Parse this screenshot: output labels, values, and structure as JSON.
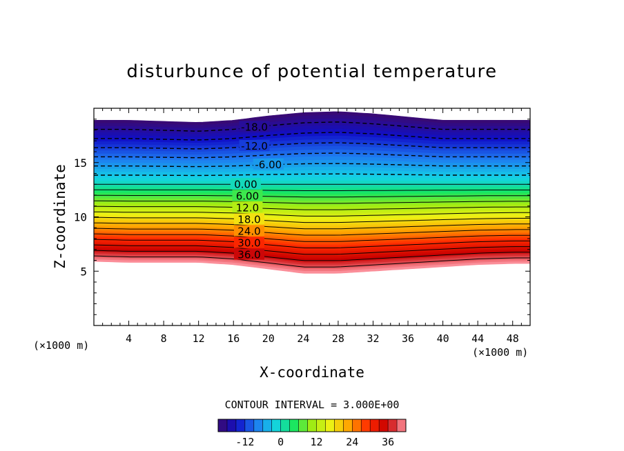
{
  "chart_data": {
    "type": "heatmap",
    "subtype": "filled-contour",
    "title": "disturbunce of potential temperature",
    "xlabel": "X-coordinate",
    "ylabel": "Z-coordinate",
    "x_unit_left": "(×1000 m)",
    "x_unit_right": "(×1000 m)",
    "xlim": [
      0,
      50
    ],
    "ylim": [
      0,
      20
    ],
    "x_ticks": [
      4,
      8,
      12,
      16,
      20,
      24,
      28,
      32,
      36,
      40,
      44,
      48
    ],
    "y_ticks": [
      5,
      10,
      15
    ],
    "contour_interval_text": "CONTOUR INTERVAL = 3.000E+00",
    "contour_interval": 3,
    "value_range": [
      -21,
      42
    ],
    "negative_contours": "dashed",
    "contour_labels": [
      "-18.0",
      "-12.0",
      "-6.00",
      "0.00",
      "6.00",
      "12.0",
      "18.0",
      "24.0",
      "30.0",
      "36.0"
    ],
    "colorbar": {
      "ticks": [
        "-12",
        "0",
        "12",
        "24",
        "36"
      ],
      "tick_values": [
        -12,
        0,
        12,
        24,
        36
      ],
      "range": [
        -21,
        42
      ],
      "colors": [
        "#3b0a6e",
        "#1010c8",
        "#1e78f0",
        "#14d2e6",
        "#14e664",
        "#a0ec14",
        "#f0f014",
        "#ffa000",
        "#ff2a00",
        "#c80000",
        "#ff9aa6"
      ]
    },
    "field": {
      "x": [
        0,
        4,
        8,
        12,
        16,
        20,
        24,
        28,
        32,
        36,
        40,
        44,
        48,
        50
      ],
      "z_value_neg21": [
        18.9,
        18.9,
        18.8,
        18.7,
        18.9,
        19.3,
        19.6,
        19.7,
        19.5,
        19.2,
        18.9,
        18.9,
        18.9,
        18.9
      ],
      "z_value_0": [
        13.0,
        13.0,
        13.0,
        13.0,
        13.0,
        13.0,
        13.0,
        13.0,
        13.0,
        13.0,
        13.0,
        13.0,
        13.0,
        13.0
      ],
      "z_value_42": [
        5.9,
        5.8,
        5.8,
        5.8,
        5.6,
        5.2,
        4.8,
        4.8,
        5.0,
        5.2,
        5.4,
        5.6,
        5.7,
        5.7
      ]
    }
  }
}
